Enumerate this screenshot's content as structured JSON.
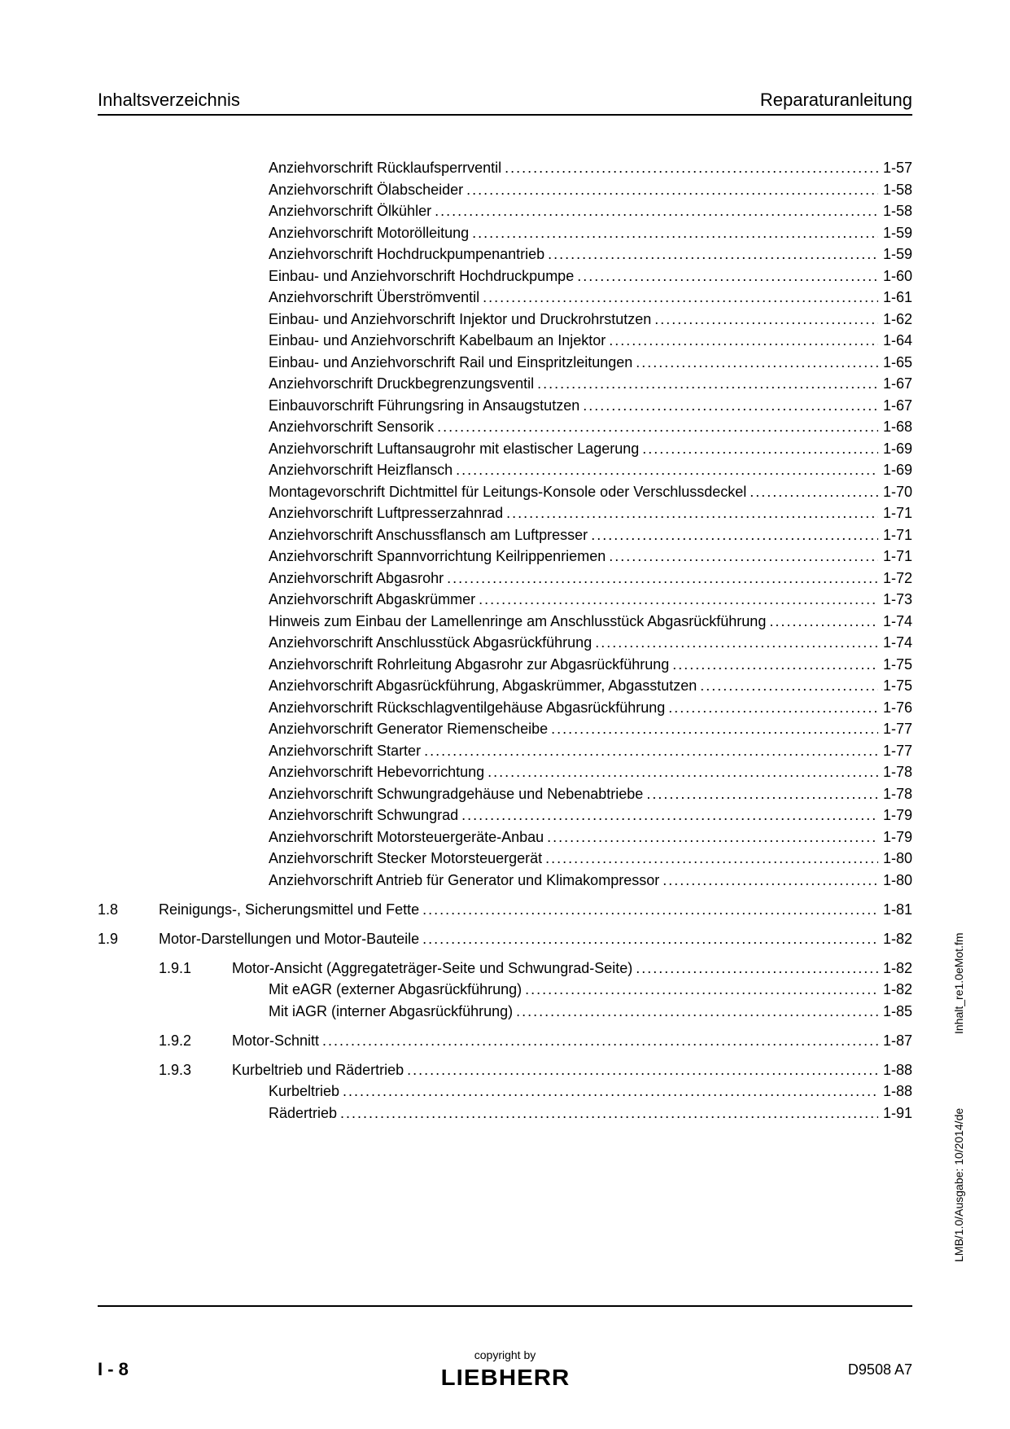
{
  "header": {
    "left": "Inhaltsverzeichnis",
    "right": "Reparaturanleitung"
  },
  "toc": [
    {
      "indent": 3,
      "title": "Anziehvorschrift Rücklaufsperrventil",
      "page": "1-57"
    },
    {
      "indent": 3,
      "title": "Anziehvorschrift Ölabscheider",
      "page": "1-58"
    },
    {
      "indent": 3,
      "title": "Anziehvorschrift Ölkühler",
      "page": "1-58"
    },
    {
      "indent": 3,
      "title": "Anziehvorschrift Motorölleitung",
      "page": "1-59"
    },
    {
      "indent": 3,
      "title": "Anziehvorschrift Hochdruckpumpenantrieb",
      "page": "1-59"
    },
    {
      "indent": 3,
      "title": "Einbau- und Anziehvorschrift Hochdruckpumpe",
      "page": "1-60"
    },
    {
      "indent": 3,
      "title": "Anziehvorschrift Überströmventil",
      "page": "1-61"
    },
    {
      "indent": 3,
      "title": "Einbau- und Anziehvorschrift Injektor und Druckrohrstutzen",
      "page": "1-62"
    },
    {
      "indent": 3,
      "title": "Einbau- und Anziehvorschrift Kabelbaum an Injektor",
      "page": "1-64"
    },
    {
      "indent": 3,
      "title": "Einbau- und Anziehvorschrift Rail und Einspritzleitungen",
      "page": "1-65"
    },
    {
      "indent": 3,
      "title": "Anziehvorschrift Druckbegrenzungsventil",
      "page": "1-67"
    },
    {
      "indent": 3,
      "title": "Einbauvorschrift Führungsring in Ansaugstutzen",
      "page": "1-67"
    },
    {
      "indent": 3,
      "title": "Anziehvorschrift Sensorik",
      "page": "1-68"
    },
    {
      "indent": 3,
      "title": "Anziehvorschrift Luftansaugrohr mit elastischer Lagerung",
      "page": "1-69"
    },
    {
      "indent": 3,
      "title": "Anziehvorschrift Heizflansch",
      "page": "1-69"
    },
    {
      "indent": 3,
      "title": "Montagevorschrift Dichtmittel für Leitungs-Konsole oder Verschlussdeckel",
      "page": "1-70"
    },
    {
      "indent": 3,
      "title": "Anziehvorschrift Luftpresserzahnrad",
      "page": "1-71"
    },
    {
      "indent": 3,
      "title": "Anziehvorschrift Anschussflansch am Luftpresser",
      "page": "1-71"
    },
    {
      "indent": 3,
      "title": "Anziehvorschrift Spannvorrichtung Keilrippenriemen",
      "page": "1-71"
    },
    {
      "indent": 3,
      "title": "Anziehvorschrift Abgasrohr",
      "page": "1-72"
    },
    {
      "indent": 3,
      "title": "Anziehvorschrift Abgaskrümmer",
      "page": "1-73"
    },
    {
      "indent": 3,
      "title": "Hinweis zum Einbau der Lamellenringe am Anschlusstück Abgasrückführung",
      "page": "1-74"
    },
    {
      "indent": 3,
      "title": "Anziehvorschrift Anschlusstück Abgasrückführung",
      "page": "1-74"
    },
    {
      "indent": 3,
      "title": "Anziehvorschrift Rohrleitung Abgasrohr zur Abgasrückführung",
      "page": "1-75"
    },
    {
      "indent": 3,
      "title": "Anziehvorschrift Abgasrückführung, Abgaskrümmer, Abgasstutzen",
      "page": "1-75"
    },
    {
      "indent": 3,
      "title": "Anziehvorschrift Rückschlagventilgehäuse Abgasrückführung",
      "page": "1-76"
    },
    {
      "indent": 3,
      "title": "Anziehvorschrift Generator Riemenscheibe",
      "page": "1-77"
    },
    {
      "indent": 3,
      "title": "Anziehvorschrift Starter",
      "page": "1-77"
    },
    {
      "indent": 3,
      "title": "Anziehvorschrift Hebevorrichtung",
      "page": "1-78"
    },
    {
      "indent": 3,
      "title": "Anziehvorschrift Schwungradgehäuse und Nebenabtriebe",
      "page": "1-78"
    },
    {
      "indent": 3,
      "title": "Anziehvorschrift Schwungrad",
      "page": "1-79"
    },
    {
      "indent": 3,
      "title": "Anziehvorschrift Motorsteuergeräte-Anbau",
      "page": "1-79"
    },
    {
      "indent": 3,
      "title": "Anziehvorschrift Stecker Motorsteuergerät",
      "page": "1-80"
    },
    {
      "indent": 3,
      "title": "Anziehvorschrift Antrieb für Generator und Klimakompressor",
      "page": "1-80"
    },
    {
      "indent": 0,
      "num1": "1.8",
      "title": "Reinigungs-, Sicherungsmittel und Fette",
      "page": "1-81",
      "gap": true
    },
    {
      "indent": 0,
      "num1": "1.9",
      "title": "Motor-Darstellungen und Motor-Bauteile",
      "page": "1-82",
      "gap": true
    },
    {
      "indent": 1,
      "num2": "1.9.1",
      "title": "Motor-Ansicht (Aggregateträger-Seite und Schwungrad-Seite)",
      "page": "1-82",
      "gap": true
    },
    {
      "indent": 3,
      "title": "Mit eAGR (externer Abgasrückführung)",
      "page": "1-82"
    },
    {
      "indent": 3,
      "title": "Mit iAGR (interner Abgasrückführung)",
      "page": "1-85"
    },
    {
      "indent": 1,
      "num2": "1.9.2",
      "title": "Motor-Schnitt",
      "page": "1-87",
      "gap": true
    },
    {
      "indent": 1,
      "num2": "1.9.3",
      "title": "Kurbeltrieb und Rädertrieb",
      "page": "1-88",
      "gap": true
    },
    {
      "indent": 3,
      "title": "Kurbeltrieb",
      "page": "1-88"
    },
    {
      "indent": 3,
      "title": "Rädertrieb",
      "page": "1-91"
    }
  ],
  "side": {
    "upper": "Inhalt_re1.0eMot.fm",
    "lower": "LMB/1.0/Ausgabe: 10/2014/de"
  },
  "footer": {
    "page_num": "I - 8",
    "copyright": "copyright by",
    "logo": "LIEBHERR",
    "doc_id": "D9508 A7"
  }
}
